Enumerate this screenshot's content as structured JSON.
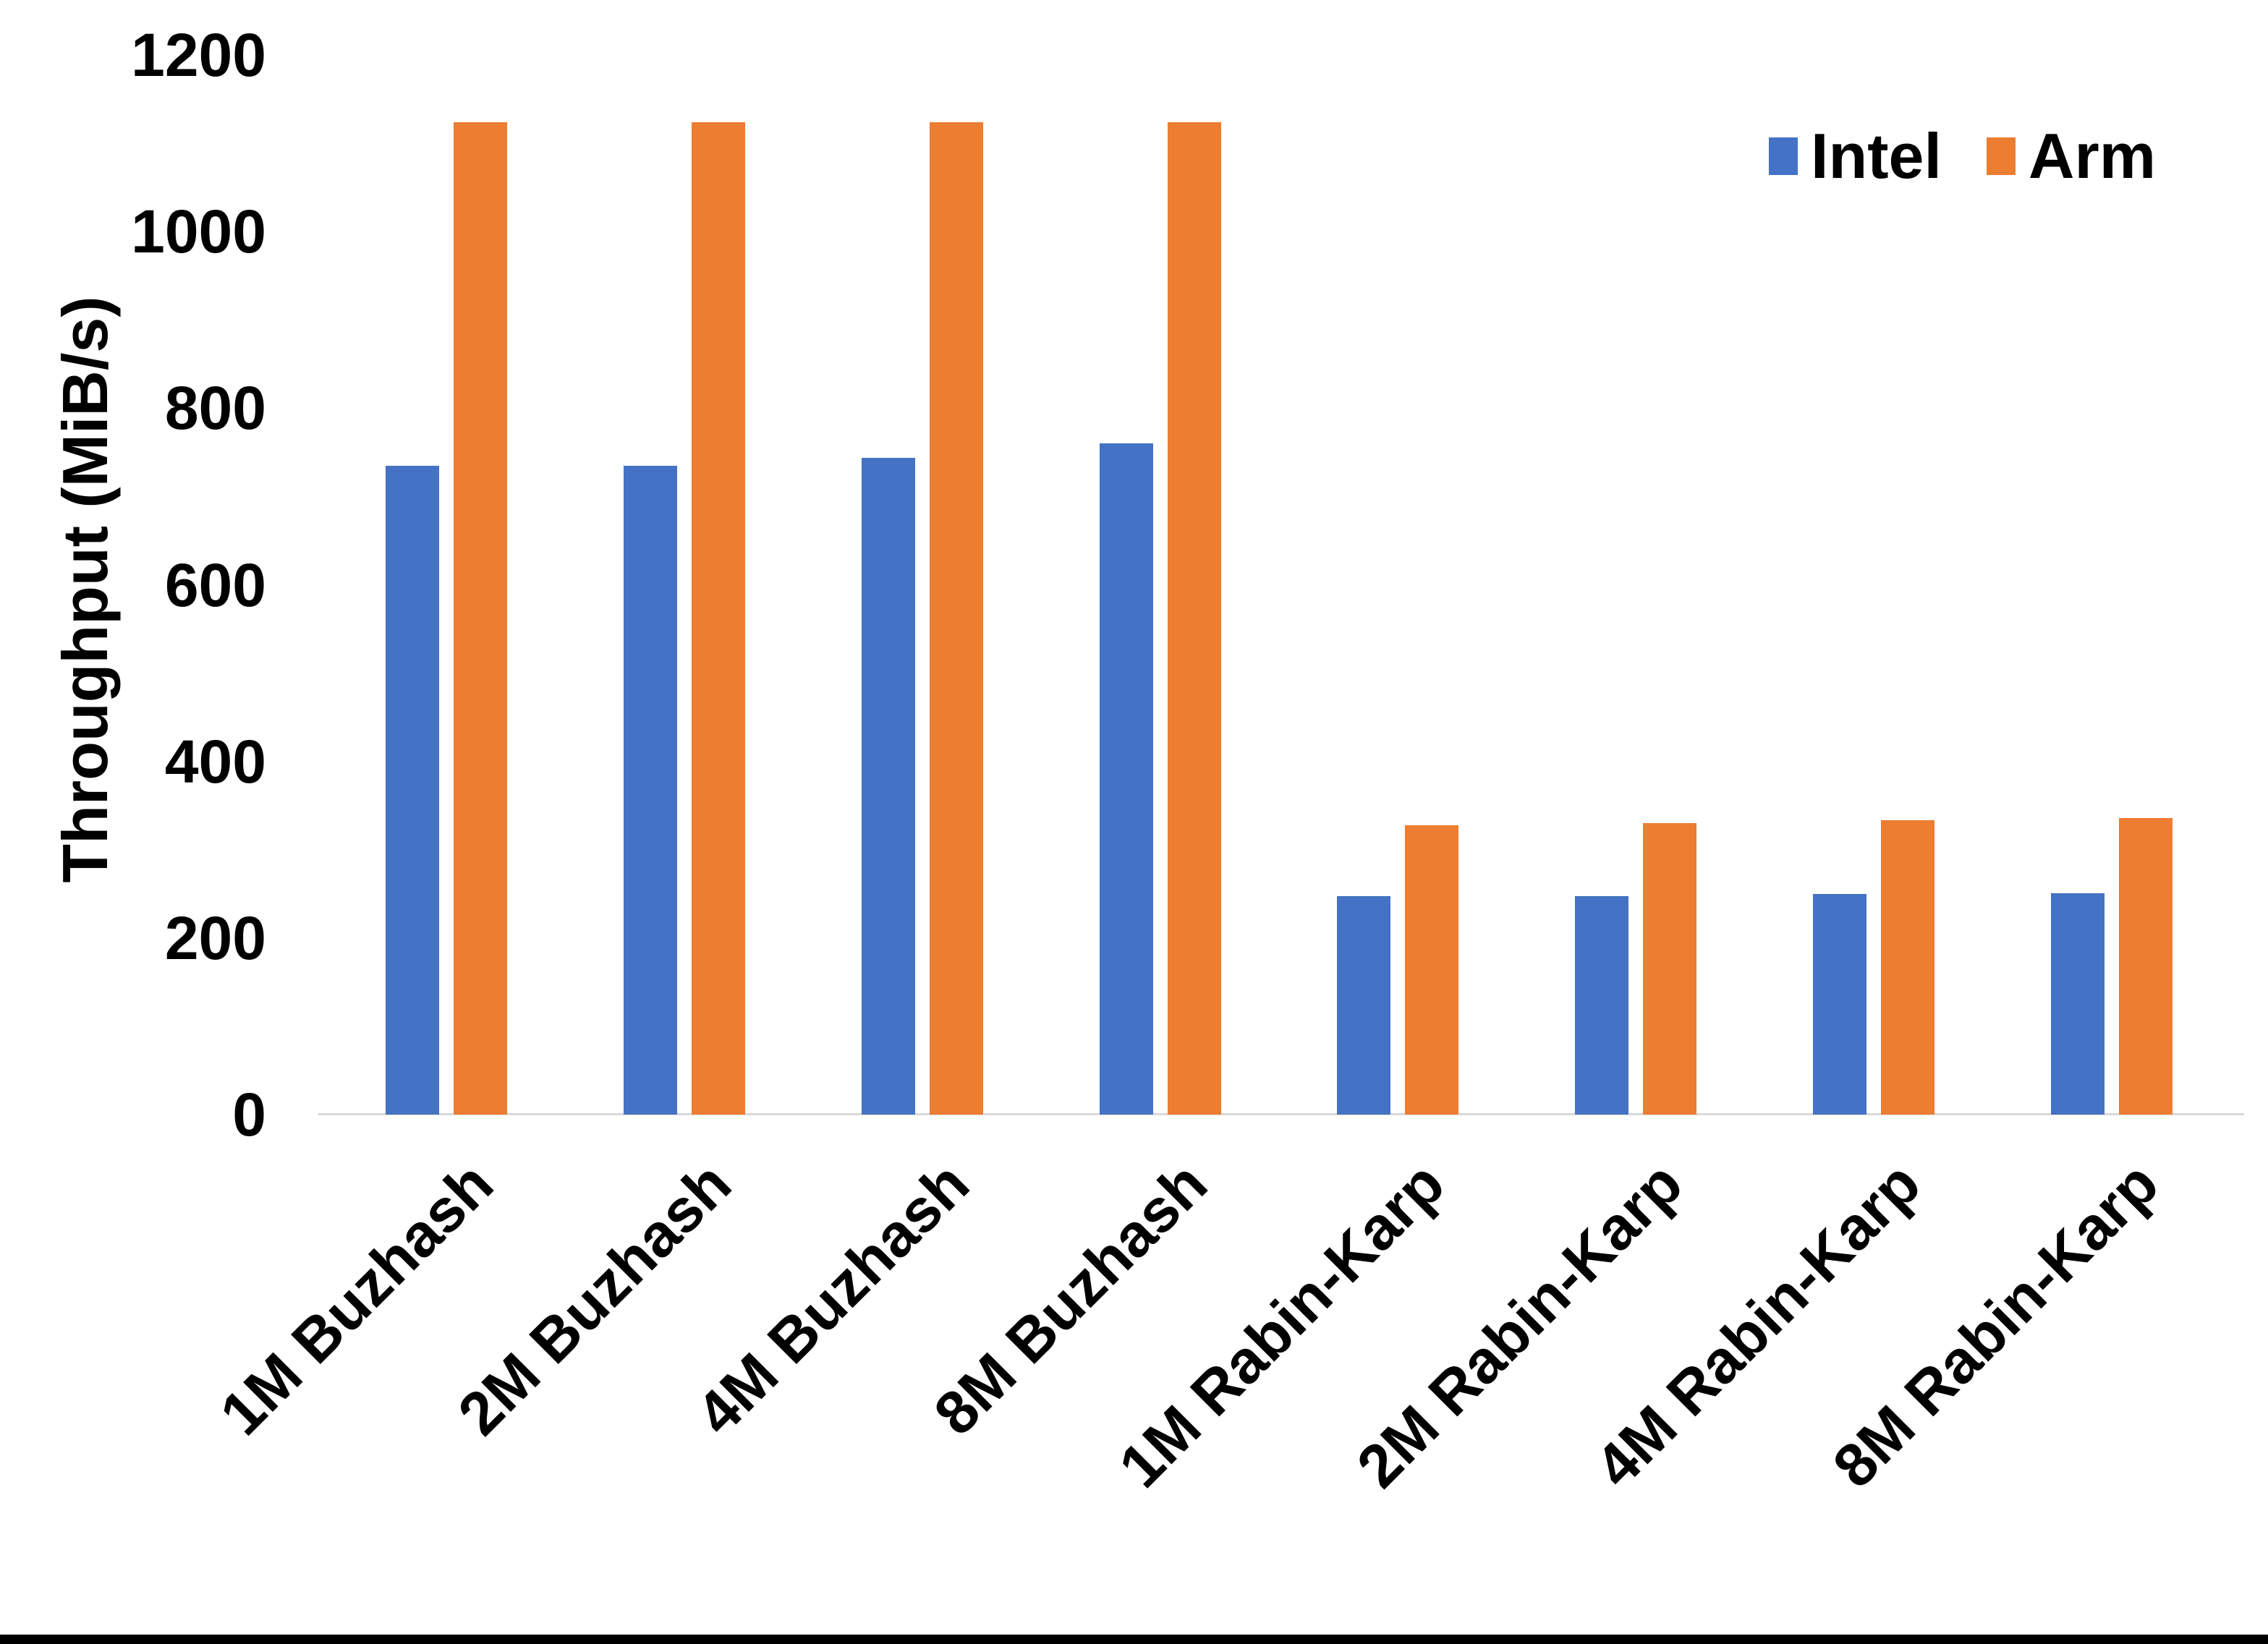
{
  "chart_data": {
    "type": "bar",
    "title": "",
    "xlabel": "",
    "ylabel": "Throughput (MiB/s)",
    "ylim": [
      0,
      1200
    ],
    "yticks": [
      0,
      200,
      400,
      600,
      800,
      1000,
      1200
    ],
    "grid": false,
    "legend_position": "top-right",
    "categories": [
      "1M Buzhash",
      "2M Buzhash",
      "4M Buzhash",
      "8M Buzhash",
      "1M Rabin-Karp",
      "2M Rabin-Karp",
      "4M Rabin-Karp",
      "8M Rabin-Karp"
    ],
    "series": [
      {
        "name": "Intel",
        "color": "#4472C4",
        "values": [
          735,
          735,
          744,
          760,
          247,
          247,
          250,
          251
        ]
      },
      {
        "name": "Arm",
        "color": "#ED7D31",
        "values": [
          1124,
          1124,
          1124,
          1124,
          328,
          330,
          333,
          336
        ]
      }
    ]
  },
  "colors": {
    "axis_line": "#D9D9D9",
    "text": "#000000",
    "background": "#FFFFFF",
    "frame_bottom": "#000000"
  }
}
